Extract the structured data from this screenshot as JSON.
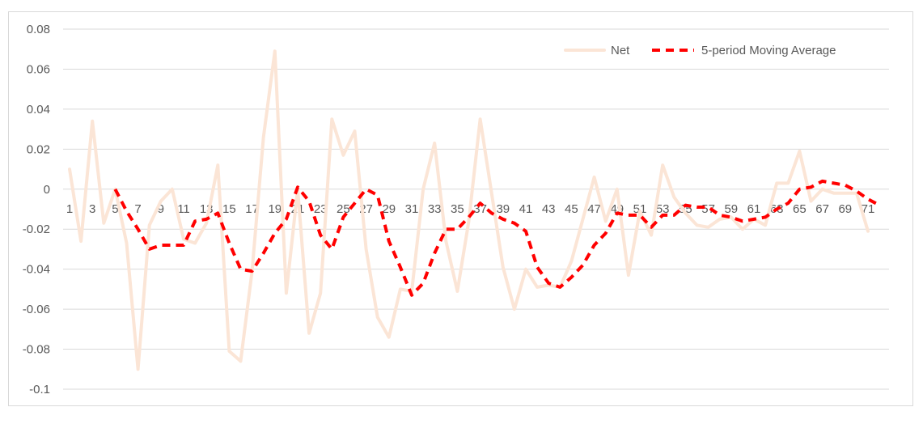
{
  "chart_data": {
    "type": "line",
    "title": "",
    "xlabel": "",
    "ylabel": "",
    "ylim": [
      -0.1,
      0.08
    ],
    "yticks": [
      -0.1,
      -0.08,
      -0.06,
      -0.04,
      -0.02,
      0,
      0.02,
      0.04,
      0.06,
      0.08
    ],
    "ytick_labels": [
      "-0.1",
      "-0.08",
      "-0.06",
      "-0.04",
      "-0.02",
      "0",
      "0.02",
      "0.04",
      "0.06",
      "0.08"
    ],
    "x": [
      1,
      2,
      3,
      4,
      5,
      6,
      7,
      8,
      9,
      10,
      11,
      12,
      13,
      14,
      15,
      16,
      17,
      18,
      19,
      20,
      21,
      22,
      23,
      24,
      25,
      26,
      27,
      28,
      29,
      30,
      31,
      32,
      33,
      34,
      35,
      36,
      37,
      38,
      39,
      40,
      41,
      42,
      43,
      44,
      45,
      46,
      47,
      48,
      49,
      50,
      51,
      52,
      53,
      54,
      55,
      56,
      57,
      58,
      59,
      60,
      61,
      62,
      63,
      64,
      65,
      66,
      67,
      68,
      69,
      70,
      71,
      72
    ],
    "xtick_labels": [
      "1",
      "3",
      "5",
      "7",
      "9",
      "11",
      "13",
      "15",
      "17",
      "19",
      "21",
      "23",
      "25",
      "27",
      "29",
      "31",
      "33",
      "35",
      "37",
      "39",
      "41",
      "43",
      "45",
      "47",
      "49",
      "51",
      "53",
      "55",
      "57",
      "59",
      "61",
      "63",
      "65",
      "67",
      "69",
      "71"
    ],
    "grid": true,
    "legend_position": "top-right",
    "series": [
      {
        "name": "Net",
        "color": "#fbe5d6",
        "style": "solid",
        "values": [
          0.01,
          -0.026,
          0.034,
          -0.017,
          0.0,
          -0.027,
          -0.09,
          -0.018,
          -0.006,
          0.0,
          -0.025,
          -0.027,
          -0.017,
          0.012,
          -0.081,
          -0.086,
          -0.041,
          0.026,
          0.069,
          -0.052,
          0.0,
          -0.072,
          -0.052,
          0.035,
          0.017,
          0.029,
          -0.03,
          -0.064,
          -0.074,
          -0.05,
          -0.051,
          0.0,
          0.023,
          -0.026,
          -0.051,
          -0.016,
          0.035,
          -0.002,
          -0.039,
          -0.06,
          -0.04,
          -0.049,
          -0.048,
          -0.049,
          -0.036,
          -0.015,
          0.006,
          -0.016,
          0.0,
          -0.043,
          -0.011,
          -0.023,
          0.012,
          -0.004,
          -0.012,
          -0.018,
          -0.019,
          -0.015,
          -0.014,
          -0.02,
          -0.015,
          -0.018,
          0.003,
          0.003,
          0.019,
          -0.006,
          0.0,
          -0.002,
          -0.002,
          -0.002,
          -0.021,
          null
        ]
      },
      {
        "name": "5-period Moving Average",
        "color": "#ff0000",
        "style": "dashed",
        "values": [
          null,
          null,
          null,
          null,
          0.0,
          -0.011,
          -0.02,
          -0.03,
          -0.028,
          -0.028,
          -0.028,
          -0.016,
          -0.015,
          -0.012,
          -0.027,
          -0.04,
          -0.041,
          -0.032,
          -0.022,
          -0.015,
          0.001,
          -0.006,
          -0.023,
          -0.03,
          -0.014,
          -0.007,
          0.0,
          -0.003,
          -0.026,
          -0.039,
          -0.053,
          -0.047,
          -0.032,
          -0.02,
          -0.02,
          -0.014,
          -0.007,
          -0.012,
          -0.015,
          -0.017,
          -0.021,
          -0.039,
          -0.047,
          -0.049,
          -0.044,
          -0.038,
          -0.028,
          -0.022,
          -0.012,
          -0.013,
          -0.013,
          -0.019,
          -0.013,
          -0.013,
          -0.008,
          -0.009,
          -0.009,
          -0.013,
          -0.014,
          -0.016,
          -0.015,
          -0.014,
          -0.01,
          -0.007,
          0.0,
          0.001,
          0.004,
          0.003,
          0.002,
          -0.001,
          -0.005,
          -0.008
        ]
      }
    ]
  }
}
